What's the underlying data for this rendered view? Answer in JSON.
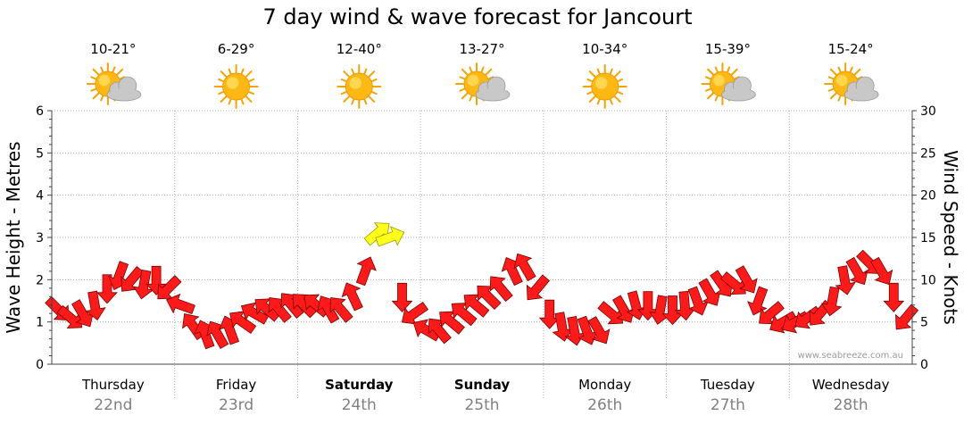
{
  "chart_data": {
    "type": "line",
    "title": "7 day wind & wave forecast for Jancourt",
    "y_left_label": "Wave Height - Metres",
    "y_right_label": "Wind Speed - Knots",
    "y_left_range": [
      0,
      6
    ],
    "y_left_ticks": [
      "0",
      "1",
      "2",
      "3",
      "4",
      "5",
      "6"
    ],
    "y_right_range": [
      0,
      30
    ],
    "y_right_ticks": [
      "0",
      "5",
      "10",
      "15",
      "20",
      "25",
      "30"
    ],
    "grid": true,
    "days": [
      {
        "day": "Thursday",
        "date": "22nd",
        "temp": "10-21°",
        "weather": "partly-cloudy",
        "bold": false
      },
      {
        "day": "Friday",
        "date": "23rd",
        "temp": "6-29°",
        "weather": "sunny",
        "bold": false
      },
      {
        "day": "Saturday",
        "date": "24th",
        "temp": "12-40°",
        "weather": "sunny",
        "bold": true
      },
      {
        "day": "Sunday",
        "date": "25th",
        "temp": "13-27°",
        "weather": "partly-cloudy",
        "bold": true
      },
      {
        "day": "Monday",
        "date": "26th",
        "temp": "10-34°",
        "weather": "sunny",
        "bold": false
      },
      {
        "day": "Tuesday",
        "date": "27th",
        "temp": "15-39°",
        "weather": "partly-cloudy",
        "bold": false
      },
      {
        "day": "Wednesday",
        "date": "28th",
        "temp": "15-24°",
        "weather": "partly-cloudy",
        "bold": false
      }
    ],
    "series": [
      {
        "name": "wind",
        "x_day": [
          0.0,
          0.1,
          0.2,
          0.3,
          0.4,
          0.5,
          0.6,
          0.7,
          0.8,
          0.9,
          1.0,
          1.1,
          1.2,
          1.3,
          1.4,
          1.5,
          1.6,
          1.7,
          1.8,
          1.9,
          2.0,
          2.1,
          2.2,
          2.3,
          2.4,
          2.5,
          2.6,
          2.7,
          2.8,
          2.9,
          3.0,
          3.1,
          3.2,
          3.3,
          3.4,
          3.5,
          3.6,
          3.7,
          3.8,
          3.9,
          4.0,
          4.1,
          4.2,
          4.3,
          4.4,
          4.5,
          4.6,
          4.7,
          4.8,
          4.9,
          5.0,
          5.1,
          5.2,
          5.3,
          5.4,
          5.5,
          5.6,
          5.7,
          5.8,
          5.9,
          6.0,
          6.1,
          6.2,
          6.3,
          6.4,
          6.5,
          6.6,
          6.7,
          6.8,
          6.9
        ],
        "knots": [
          6.5,
          5.5,
          6,
          7,
          9,
          10.5,
          10,
          9.5,
          10,
          9,
          7,
          4.5,
          3.5,
          3.5,
          4,
          5,
          6,
          6.5,
          6.5,
          7,
          7,
          7,
          6.5,
          6.5,
          8,
          11,
          15.5,
          15,
          8,
          6,
          4,
          4,
          5,
          6,
          7,
          8,
          9,
          11,
          11.5,
          9,
          6,
          4.5,
          4,
          4,
          4,
          6,
          6.5,
          7,
          7,
          6.5,
          6.5,
          7,
          7.5,
          8.5,
          9.5,
          9.5,
          10,
          7.5,
          6,
          5,
          5,
          5.5,
          6,
          7.5,
          10,
          11,
          12,
          11,
          8,
          5.5
        ],
        "direction_deg": [
          45,
          40,
          60,
          80,
          90,
          110,
          130,
          100,
          90,
          135,
          200,
          235,
          250,
          240,
          250,
          215,
          210,
          220,
          230,
          230,
          225,
          220,
          240,
          230,
          245,
          290,
          320,
          340,
          90,
          145,
          210,
          230,
          220,
          220,
          220,
          225,
          230,
          245,
          240,
          130,
          90,
          80,
          80,
          70,
          60,
          40,
          60,
          75,
          90,
          100,
          90,
          85,
          70,
          60,
          55,
          40,
          60,
          110,
          140,
          150,
          150,
          145,
          130,
          100,
          80,
          60,
          45,
          60,
          90,
          130
        ]
      }
    ],
    "credit": "www.seabreeze.com.au"
  }
}
